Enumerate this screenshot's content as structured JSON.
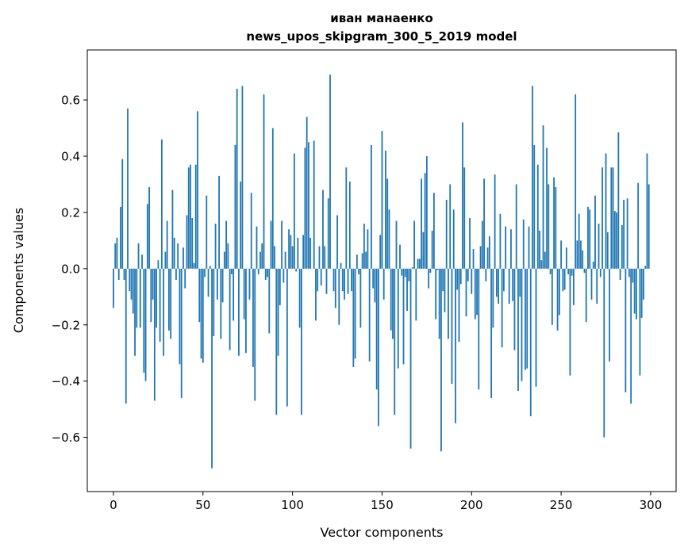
{
  "chart_data": {
    "type": "bar",
    "title": [
      "иван манаенко",
      "news_upos_skipgram_300_5_2019 model"
    ],
    "xlabel": "Vector components",
    "ylabel": "Components values",
    "xlim": [
      -14.6,
      314.2
    ],
    "ylim": [
      -0.793,
      0.778
    ],
    "xticks": [
      0,
      50,
      100,
      150,
      200,
      250,
      300
    ],
    "xtick_labels": [
      "0",
      "50",
      "100",
      "150",
      "200",
      "250",
      "300"
    ],
    "yticks": [
      -0.6,
      -0.4,
      -0.2,
      0.0,
      0.2,
      0.4,
      0.6
    ],
    "ytick_labels": [
      "−0.6",
      "−0.4",
      "−0.2",
      "0.0",
      "0.2",
      "0.4",
      "0.6"
    ],
    "grid": false,
    "bar_color": "#1f77b4",
    "values": [
      -0.14,
      0.09,
      0.11,
      -0.04,
      0.22,
      0.39,
      -0.04,
      -0.48,
      0.57,
      -0.08,
      -0.11,
      -0.16,
      -0.31,
      -0.21,
      0.09,
      -0.21,
      0.05,
      -0.37,
      -0.4,
      0.23,
      0.29,
      -0.19,
      -0.11,
      -0.47,
      -0.21,
      0.03,
      -0.26,
      0.46,
      -0.31,
      0.06,
      0.17,
      -0.22,
      -0.25,
      0.28,
      0.11,
      -0.04,
      0.09,
      -0.34,
      -0.46,
      0.075,
      -0.07,
      0.19,
      0.36,
      0.37,
      0.18,
      0.02,
      0.37,
      0.56,
      -0.19,
      -0.32,
      -0.335,
      -0.03,
      0.26,
      -0.1,
      0.01,
      -0.71,
      -0.24,
      0.16,
      -0.11,
      0.33,
      -0.25,
      -0.12,
      0.06,
      0.17,
      0.09,
      -0.29,
      -0.02,
      -0.185,
      0.44,
      0.64,
      -0.31,
      0.31,
      0.65,
      -0.18,
      -0.3,
      0.0,
      -0.11,
      0.27,
      -0.35,
      -0.47,
      0.15,
      -0.02,
      0.06,
      0.09,
      0.62,
      -0.04,
      -0.03,
      -0.23,
      0.17,
      0.5,
      0.08,
      -0.52,
      -0.31,
      -0.13,
      0.17,
      -0.05,
      0.06,
      -0.49,
      0.14,
      0.12,
      0.08,
      0.41,
      -0.01,
      0.11,
      -0.21,
      -0.52,
      0.12,
      0.43,
      0.54,
      0.45,
      0.11,
      0.0,
      0.455,
      -0.185,
      -0.08,
      0.08,
      -0.06,
      0.28,
      0.08,
      -0.09,
      0.25,
      0.69,
      0.0,
      -0.08,
      -0.14,
      0.19,
      -0.2,
      0.02,
      -0.08,
      -0.11,
      0.36,
      -0.09,
      0.31,
      -0.08,
      -0.35,
      -0.32,
      0.05,
      -0.02,
      -0.21,
      0.055,
      0.16,
      0.06,
      0.14,
      -0.33,
      0.44,
      -0.07,
      -0.12,
      -0.43,
      -0.56,
      0.12,
      0.49,
      -0.11,
      0.42,
      0.32,
      0.21,
      -0.22,
      -0.25,
      -0.52,
      0.17,
      -0.355,
      0.085,
      -0.025,
      -0.34,
      -0.03,
      -0.15,
      -0.045,
      -0.64,
      0.005,
      0.17,
      -0.185,
      0.035,
      0.035,
      0.32,
      0.13,
      0.34,
      0.4,
      -0.07,
      -0.015,
      0.135,
      0.27,
      -0.18,
      -0.005,
      -0.25,
      -0.65,
      -0.08,
      -0.155,
      0.245,
      -0.25,
      0.3,
      -0.41,
      0.21,
      -0.55,
      -0.075,
      -0.26,
      -0.055,
      0.52,
      0.36,
      -0.17,
      -0.045,
      0.18,
      -0.09,
      0.07,
      -0.18,
      -0.165,
      -0.43,
      0.08,
      0.17,
      0.32,
      -0.045,
      0.075,
      0.115,
      -0.46,
      -0.21,
      0.335,
      -0.1,
      -0.125,
      0.195,
      -0.28,
      -0.08,
      0.15,
      0.0,
      -0.125,
      0.14,
      -0.115,
      -0.29,
      0.3,
      -0.435,
      -0.1,
      -0.4,
      0.175,
      -0.36,
      -0.355,
      0.15,
      -0.525,
      0.65,
      0.44,
      -0.42,
      0.37,
      0.135,
      0.03,
      0.51,
      0.06,
      0.43,
      0.3,
      -0.02,
      -0.2,
      0.325,
      0.29,
      -0.22,
      -0.165,
      0.1,
      -0.08,
      -0.075,
      0.075,
      -0.02,
      -0.38,
      -0.025,
      -0.13,
      0.62,
      0.1,
      0.195,
      0.1,
      0.065,
      -0.015,
      -0.19,
      0.22,
      0.21,
      -0.11,
      0.025,
      0.26,
      -0.125,
      0.16,
      -0.03,
      0.36,
      -0.6,
      0.41,
      0.13,
      -0.33,
      0.36,
      0.36,
      0.205,
      0.2,
      0.485,
      -0.04,
      0.155,
      0.245,
      -0.44,
      0.25,
      -0.03,
      -0.48,
      -0.05,
      -0.16,
      -0.18,
      0.305,
      -0.38,
      -0.175,
      -0.11,
      0.01,
      0.41,
      0.3
    ]
  }
}
